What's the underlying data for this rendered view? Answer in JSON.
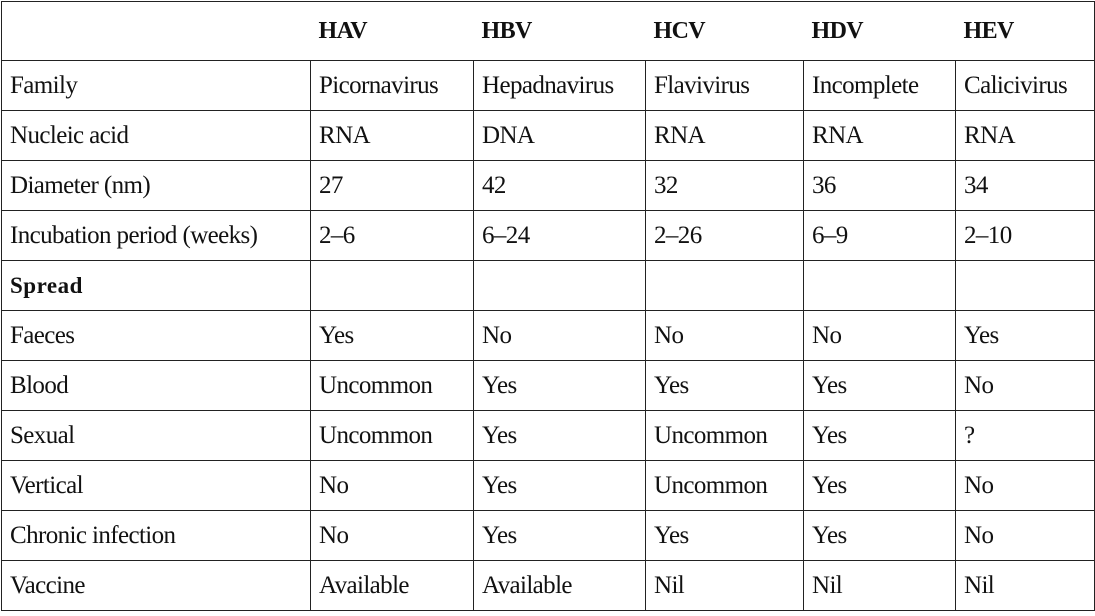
{
  "header": {
    "cells": [
      "HAV",
      "HBV",
      "HCV",
      "HDV",
      "HEV"
    ]
  },
  "table": {
    "rows": [
      [
        "Family",
        "Picornavirus",
        "Hepadnavirus",
        "Flavivirus",
        "Incomplete",
        "Calicivirus"
      ],
      [
        "Nucleic acid",
        "RNA",
        "DNA",
        "RNA",
        "RNA",
        "RNA"
      ],
      [
        "Diameter (nm)",
        "27",
        "42",
        "32",
        "36",
        "34"
      ],
      [
        "Incubation period (weeks)",
        "2–6",
        "6–24",
        "2–26",
        "6–9",
        "2–10"
      ],
      [
        "Spread"
      ],
      [
        "Faeces",
        "Yes",
        "No",
        "No",
        "No",
        "Yes"
      ],
      [
        "Blood",
        "Uncommon",
        "Yes",
        "Yes",
        "Yes",
        "No"
      ],
      [
        "Sexual",
        "Uncommon",
        "Yes",
        "Uncommon",
        "Yes",
        "?"
      ],
      [
        "Vertical",
        "No",
        "Yes",
        "Uncommon",
        "Yes",
        "No"
      ],
      [
        "Chronic infection",
        "No",
        "Yes",
        "Yes",
        "Yes",
        "No"
      ],
      [
        "Vaccine",
        "Available",
        "Available",
        "Nil",
        "Nil",
        "Nil"
      ]
    ]
  }
}
